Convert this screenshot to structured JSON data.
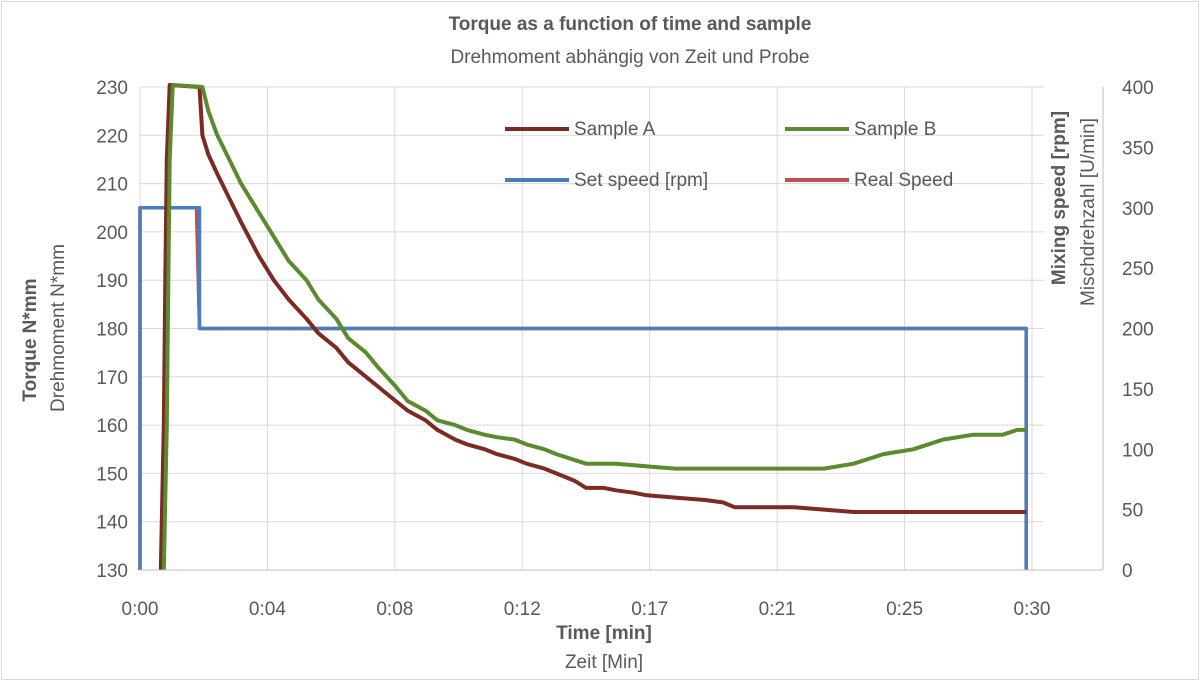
{
  "chart_data": {
    "type": "line",
    "title": "Torque as a function of time and sample",
    "subtitle": "Drehmoment  abhängig von Zeit und Probe",
    "xlabel": "Time [min]",
    "xlabel2": "Zeit [Min]",
    "ylabel": "Torque N*mm",
    "ylabel2": "Drehmoment  N*mm",
    "y2label": "Mixing speed [rpm]",
    "y2label2": "Mischdrehzahl [U/min]",
    "x_ticks": [
      "0:00",
      "0:04",
      "0:08",
      "0:12",
      "0:17",
      "0:21",
      "0:25",
      "0:30"
    ],
    "x_range_min": [
      0,
      30.4
    ],
    "ylim": [
      130,
      230
    ],
    "y_ticks": [
      130,
      140,
      150,
      160,
      170,
      180,
      190,
      200,
      210,
      220,
      230
    ],
    "y2lim": [
      0,
      400
    ],
    "y2_ticks": [
      0,
      50,
      100,
      150,
      200,
      250,
      300,
      350,
      400
    ],
    "grid": true,
    "legend_placement": "top-center",
    "series": [
      {
        "name": "Sample A",
        "axis": "left",
        "color": "#7b2a24",
        "x": [
          0.7,
          0.8,
          0.85,
          0.9,
          1.0,
          2.0,
          2.1,
          2.3,
          2.6,
          3.0,
          3.4,
          4.0,
          4.5,
          5.0,
          5.6,
          6.0,
          6.6,
          7.0,
          7.6,
          8.0,
          8.6,
          9.0,
          9.6,
          10.0,
          10.6,
          11.0,
          11.6,
          12.0,
          12.6,
          13.0,
          13.6,
          14.0,
          14.6,
          15.0,
          15.6,
          16.0,
          16.6,
          17.0,
          18.0,
          19.0,
          19.6,
          20.0,
          21.0,
          22.0,
          23.0,
          24.0,
          25.0,
          26.0,
          27.0,
          28.0,
          29.0,
          29.5,
          29.8
        ],
        "y": [
          130,
          160,
          190,
          215,
          235,
          230,
          220,
          216,
          212,
          207,
          202,
          195,
          190,
          186,
          182,
          179,
          176,
          173,
          170,
          168,
          165,
          163,
          161,
          159,
          157,
          156,
          155,
          154,
          153,
          152,
          151,
          150,
          148.5,
          147,
          147,
          146.5,
          146,
          145.5,
          145,
          144.5,
          144,
          143,
          143,
          143,
          142.5,
          142,
          142,
          142,
          142,
          142,
          142,
          142,
          142
        ]
      },
      {
        "name": "Sample B",
        "axis": "left",
        "color": "#5b8a2f",
        "x": [
          0.8,
          0.9,
          0.95,
          1.0,
          1.1,
          2.1,
          2.3,
          2.6,
          3.0,
          3.4,
          4.0,
          4.5,
          5.0,
          5.6,
          6.0,
          6.6,
          7.0,
          7.6,
          8.0,
          8.6,
          9.0,
          9.6,
          10.0,
          10.6,
          11.0,
          11.6,
          12.0,
          12.6,
          13.0,
          13.6,
          14.0,
          15.0,
          16.0,
          17.0,
          18.0,
          19.0,
          20.0,
          21.0,
          22.0,
          23.0,
          24.0,
          25.0,
          26.0,
          27.0,
          28.0,
          29.0,
          29.5,
          29.8
        ],
        "y": [
          130,
          160,
          190,
          215,
          235,
          230,
          225,
          220,
          215,
          210,
          204,
          199,
          194,
          190,
          186,
          182,
          178,
          175,
          172,
          168,
          165,
          163,
          161,
          160,
          159,
          158,
          157.5,
          157,
          156,
          155,
          154,
          152,
          152,
          151.5,
          151,
          151,
          151,
          151,
          151,
          151,
          152,
          154,
          155,
          157,
          158,
          158,
          159,
          159
        ]
      },
      {
        "name": "Set speed [rpm]",
        "axis": "right",
        "color": "#4a7ebb",
        "x": [
          0.0,
          0.0,
          1.0,
          1.05,
          2.0,
          2.0,
          29.8,
          29.8
        ],
        "y": [
          0,
          300,
          300,
          300,
          300,
          200,
          200,
          0
        ]
      },
      {
        "name": "Real Speed",
        "axis": "right",
        "color": "#c0504d",
        "x": [
          0.0,
          0.0,
          1.9,
          2.0,
          29.8,
          29.8
        ],
        "y": [
          0,
          300,
          300,
          200,
          200,
          0
        ]
      }
    ]
  }
}
